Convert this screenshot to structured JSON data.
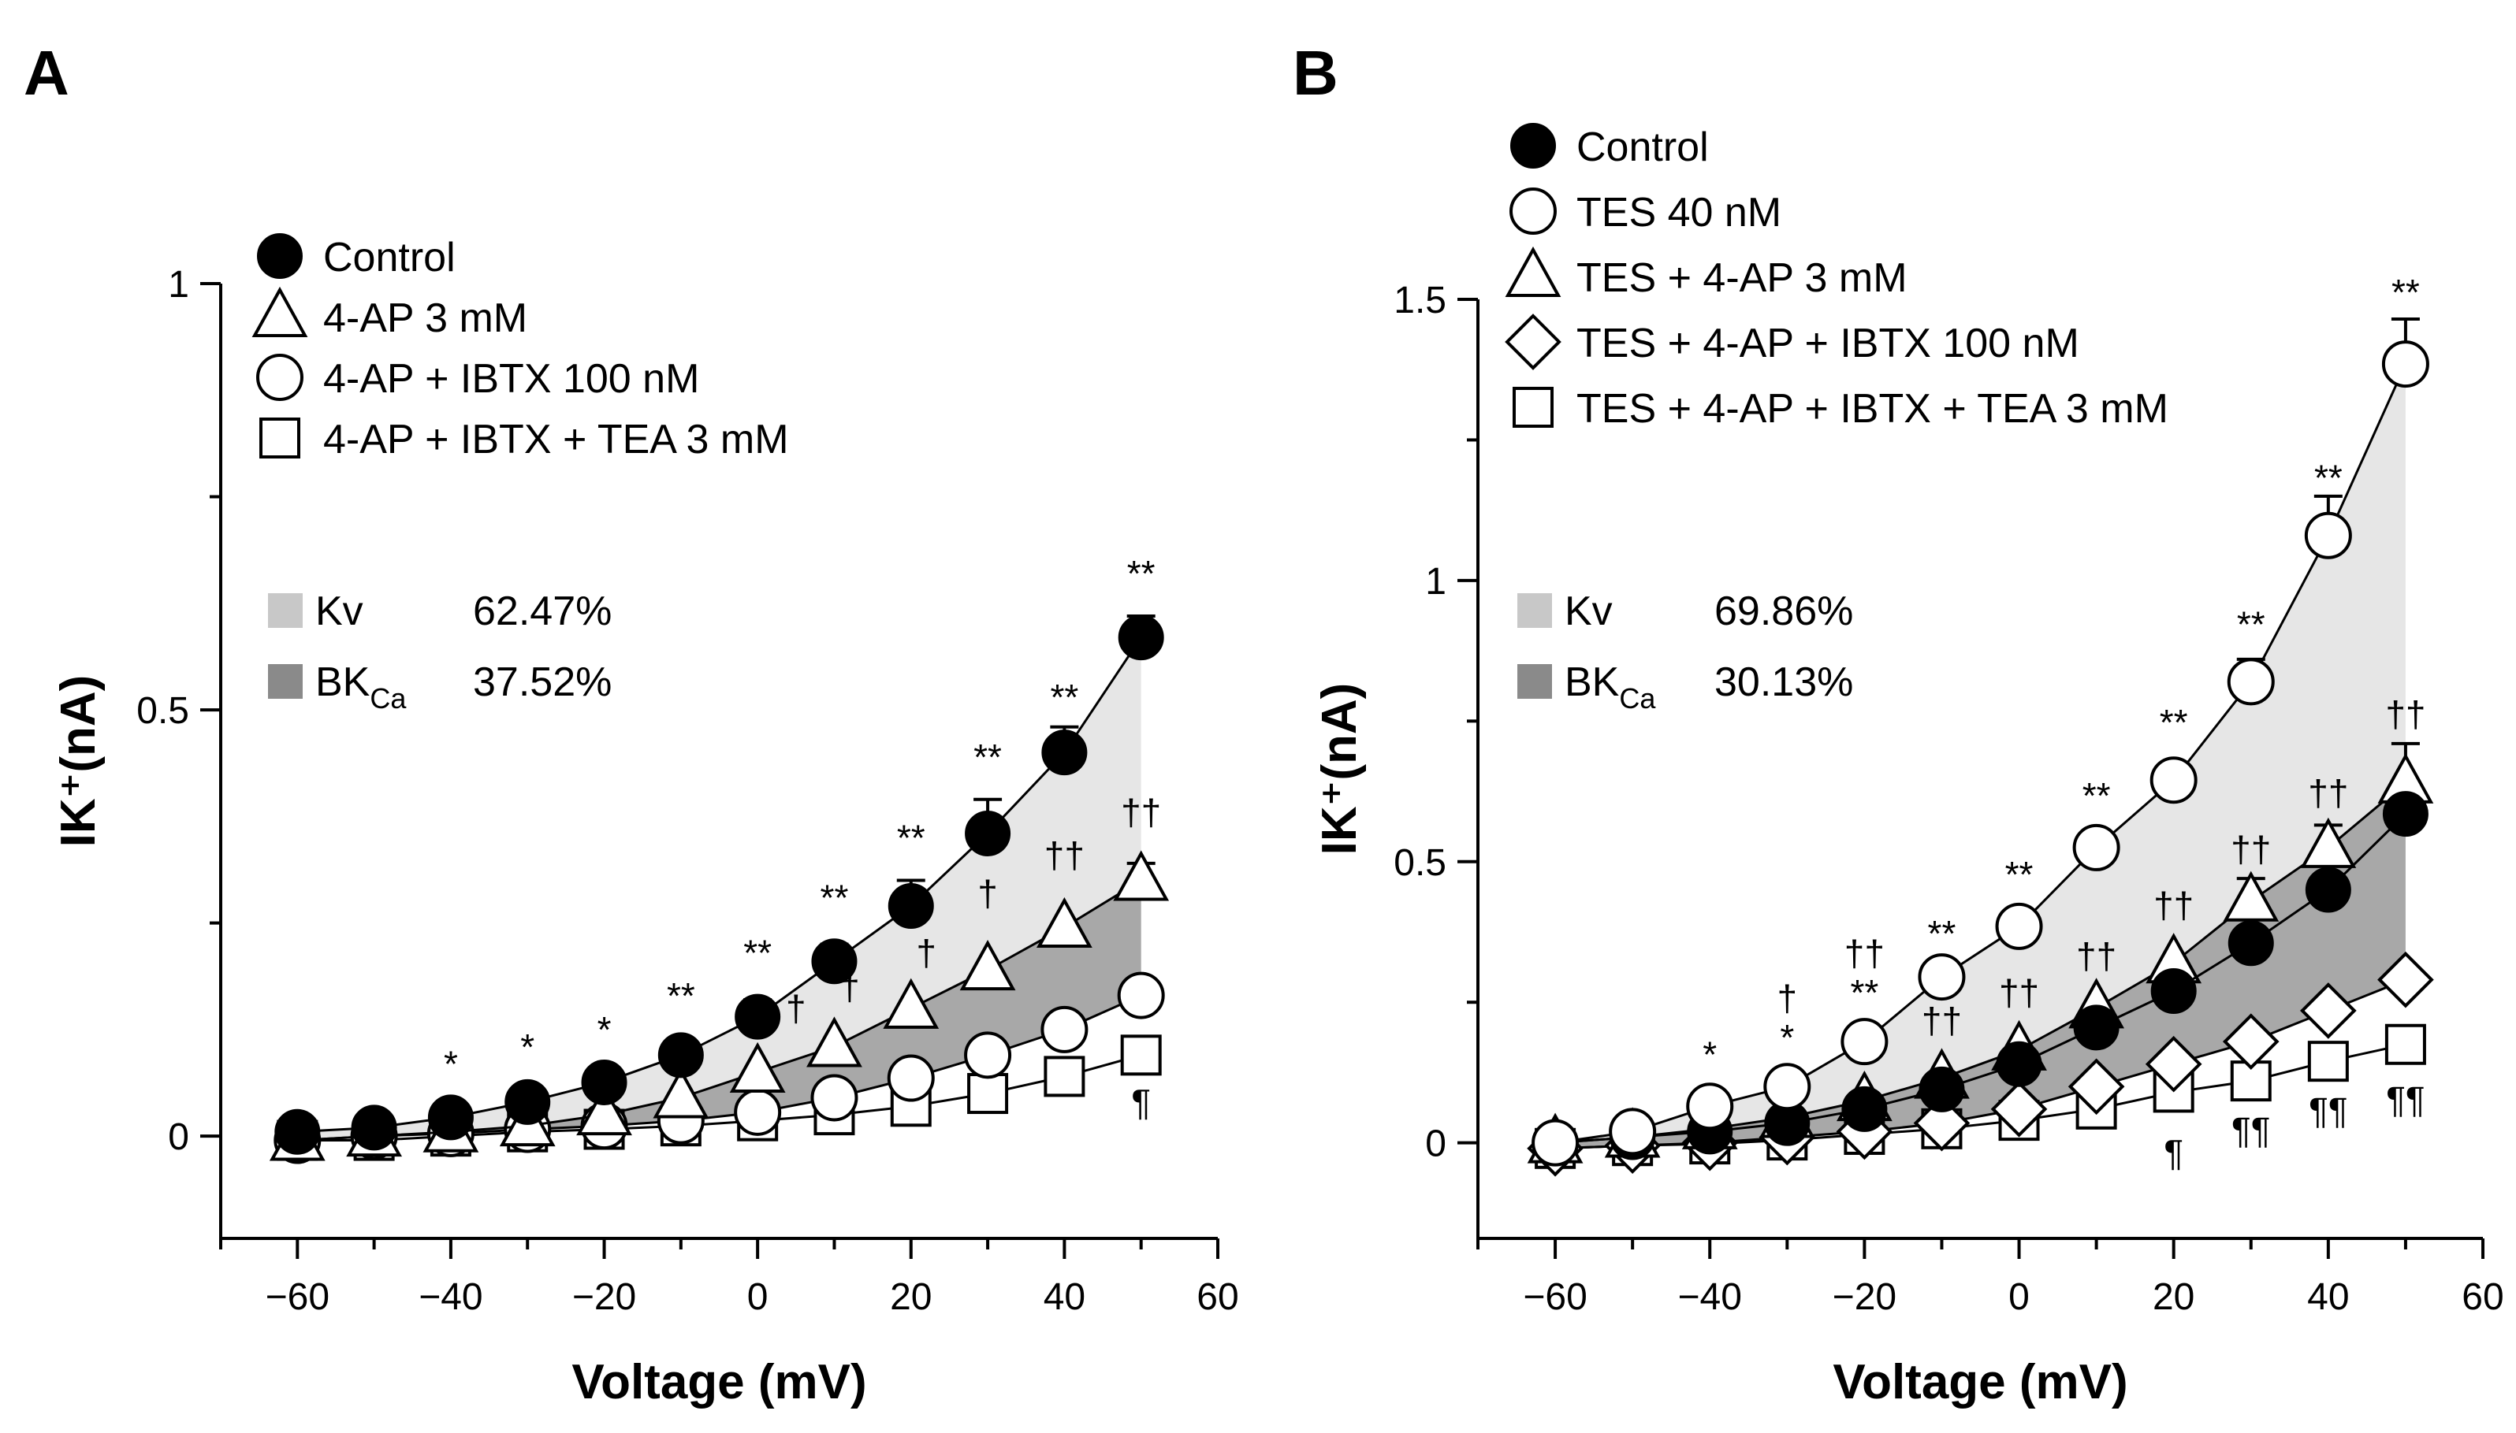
{
  "chart_data": [
    {
      "panel": "A",
      "type": "line",
      "xlabel": "Voltage (mV)",
      "ylabel": "IK⁺(nA)",
      "xlim": [
        -70,
        60
      ],
      "ylim": [
        -0.12,
        1.0
      ],
      "xticks": [
        -60,
        -40,
        -20,
        0,
        20,
        40,
        60
      ],
      "xtick_labels": [
        "−60",
        "−40",
        "−20",
        "0",
        "20",
        "40",
        "60"
      ],
      "yticks": [
        0,
        0.5,
        1
      ],
      "ytick_labels": [
        "0",
        "0.5",
        "1"
      ],
      "x": [
        -60,
        -50,
        -40,
        -30,
        -20,
        -10,
        0,
        10,
        20,
        30,
        40,
        50
      ],
      "series": [
        {
          "name": "4-AP + IBTX + TEA 3 mM",
          "marker": "square",
          "values": [
            -0.005,
            -0.005,
            0.0,
            0.005,
            0.008,
            0.012,
            0.018,
            0.025,
            0.035,
            0.05,
            0.07,
            0.095
          ],
          "err": [
            0,
            0,
            0,
            0,
            0,
            0,
            0,
            0,
            0,
            0,
            0,
            0.004
          ]
        },
        {
          "name": "4-AP + IBTX  100 nM",
          "marker": "circle-open",
          "values": [
            -0.005,
            0.0,
            0.003,
            0.008,
            0.012,
            0.018,
            0.028,
            0.045,
            0.068,
            0.095,
            0.125,
            0.165
          ],
          "err": [
            0,
            0,
            0,
            0,
            0,
            0,
            0,
            0,
            0,
            0,
            0,
            0
          ]
        },
        {
          "name": "4-AP 3 mM",
          "marker": "triangle",
          "values": [
            -0.005,
            0.0,
            0.005,
            0.012,
            0.025,
            0.045,
            0.075,
            0.105,
            0.15,
            0.195,
            0.245,
            0.3
          ],
          "err": [
            0,
            0,
            0,
            0,
            0,
            0,
            0,
            0,
            0,
            0,
            0,
            0.02
          ]
        },
        {
          "name": "Control",
          "marker": "circle-filled",
          "values": [
            0.005,
            0.01,
            0.022,
            0.04,
            0.063,
            0.095,
            0.14,
            0.205,
            0.27,
            0.355,
            0.45,
            0.585
          ],
          "err": [
            0,
            0,
            0.005,
            0.008,
            0.01,
            0.012,
            0.02,
            0.02,
            0.03,
            0.04,
            0.03,
            0.025
          ]
        }
      ],
      "shaded_regions": [
        {
          "name": "Kv",
          "between": [
            "Control",
            "4-AP 3 mM"
          ],
          "color": "#e6e6e6"
        },
        {
          "name": "BKCa",
          "between": [
            "4-AP 3 mM",
            "4-AP + IBTX  100 nM"
          ],
          "color": "#a8a8a8"
        }
      ],
      "legend": {
        "placement": "top-left",
        "entries": [
          "Control",
          "4-AP 3 mM",
          "4-AP + IBTX  100 nM",
          "4-AP + IBTX + TEA 3 mM"
        ]
      },
      "percent_legend": [
        {
          "label": "Kv",
          "sub": "",
          "value": "62.47%",
          "color": "#c8c8c8"
        },
        {
          "label": "BK",
          "sub": "Ca",
          "value": "37.52%",
          "color": "#8a8a8a"
        }
      ],
      "annotations": [
        {
          "x": -40,
          "y": 0.07,
          "text": "*"
        },
        {
          "x": -30,
          "y": 0.09,
          "text": "*"
        },
        {
          "x": -20,
          "y": 0.11,
          "text": "*"
        },
        {
          "x": -10,
          "y": 0.15,
          "text": "**"
        },
        {
          "x": 0,
          "y": 0.2,
          "text": "**"
        },
        {
          "x": 10,
          "y": 0.265,
          "text": "**"
        },
        {
          "x": 20,
          "y": 0.335,
          "text": "**"
        },
        {
          "x": 30,
          "y": 0.43,
          "text": "**"
        },
        {
          "x": 40,
          "y": 0.5,
          "text": "**"
        },
        {
          "x": 50,
          "y": 0.645,
          "text": "**"
        },
        {
          "x": 5,
          "y": 0.135,
          "text": "†"
        },
        {
          "x": 12,
          "y": 0.16,
          "text": "†"
        },
        {
          "x": 22,
          "y": 0.2,
          "text": "†"
        },
        {
          "x": 30,
          "y": 0.27,
          "text": "†"
        },
        {
          "x": 40,
          "y": 0.315,
          "text": "††"
        },
        {
          "x": 50,
          "y": 0.365,
          "text": "††"
        },
        {
          "x": 50,
          "y": 0.025,
          "text": "¶"
        }
      ]
    },
    {
      "panel": "B",
      "type": "line",
      "xlabel": "Voltage (mV)",
      "ylabel": "IK⁺(nA)",
      "xlim": [
        -70,
        60
      ],
      "ylim": [
        -0.17,
        1.5
      ],
      "xticks": [
        -60,
        -40,
        -20,
        0,
        20,
        40,
        60
      ],
      "xtick_labels": [
        "−60",
        "−40",
        "−20",
        "0",
        "20",
        "40",
        "60"
      ],
      "yticks": [
        0,
        0.5,
        1,
        1.5
      ],
      "ytick_labels": [
        "0",
        "0.5",
        "1",
        "1.5"
      ],
      "x": [
        -60,
        -50,
        -40,
        -30,
        -20,
        -10,
        0,
        10,
        20,
        30,
        40,
        50
      ],
      "series": [
        {
          "name": "TES + 4-AP + IBTX + TEA 3 mM",
          "marker": "square",
          "values": [
            -0.01,
            -0.005,
            -0.002,
            0.005,
            0.015,
            0.025,
            0.04,
            0.06,
            0.09,
            0.11,
            0.145,
            0.175
          ],
          "err": [
            0,
            0,
            0,
            0,
            0,
            0,
            0,
            0,
            0,
            0,
            0,
            0.01
          ]
        },
        {
          "name": "TES + 4-AP + IBTX  100 nM",
          "marker": "diamond",
          "values": [
            -0.01,
            -0.005,
            0.0,
            0.01,
            0.02,
            0.035,
            0.06,
            0.1,
            0.14,
            0.18,
            0.235,
            0.29
          ],
          "err": [
            0,
            0,
            0,
            0,
            0,
            0,
            0,
            0,
            0,
            0,
            0,
            0
          ]
        },
        {
          "name": "TES + 4-AP 3 mM",
          "marker": "triangle",
          "values": [
            0.0,
            0.01,
            0.025,
            0.045,
            0.075,
            0.115,
            0.165,
            0.24,
            0.32,
            0.43,
            0.525,
            0.64
          ],
          "err": [
            0,
            0,
            0,
            0,
            0,
            0,
            0,
            0,
            0,
            0.04,
            0.04,
            0.07
          ]
        },
        {
          "name": "Control",
          "marker": "circle-filled",
          "values": [
            0.0,
            0.01,
            0.02,
            0.035,
            0.06,
            0.095,
            0.14,
            0.205,
            0.27,
            0.355,
            0.45,
            0.585
          ],
          "err": [
            0,
            0,
            0,
            0,
            0,
            0,
            0,
            0,
            0,
            0,
            0,
            0
          ]
        },
        {
          "name": "TES 40 nM",
          "marker": "circle-open",
          "values": [
            0.0,
            0.02,
            0.065,
            0.1,
            0.18,
            0.295,
            0.385,
            0.525,
            0.645,
            0.82,
            1.08,
            1.385
          ],
          "err": [
            0,
            0,
            0,
            0,
            0,
            0,
            0,
            0,
            0,
            0.04,
            0.07,
            0.08
          ]
        }
      ],
      "shaded_regions": [
        {
          "name": "Kv",
          "between": [
            "TES 40 nM",
            "TES + 4-AP 3 mM"
          ],
          "color": "#e6e6e6"
        },
        {
          "name": "BKCa",
          "between": [
            "TES + 4-AP 3 mM",
            "TES + 4-AP + IBTX  100 nM"
          ],
          "color": "#a8a8a8"
        }
      ],
      "legend": {
        "placement": "top-left",
        "entries": [
          "Control",
          "TES 40 nM",
          "TES + 4-AP 3 mM",
          "TES + 4-AP + IBTX  100 nM",
          "TES + 4-AP + IBTX + TEA 3 mM"
        ]
      },
      "percent_legend": [
        {
          "label": "Kv",
          "sub": "",
          "value": "69.86%",
          "color": "#c8c8c8"
        },
        {
          "label": "BK",
          "sub": "Ca",
          "value": "30.13%",
          "color": "#8a8a8a"
        }
      ],
      "annotations": [
        {
          "x": -40,
          "y": 0.135,
          "text": "*"
        },
        {
          "x": -30,
          "y": 0.165,
          "text": "*"
        },
        {
          "x": -30,
          "y": 0.235,
          "text": "†"
        },
        {
          "x": -20,
          "y": 0.245,
          "text": "**"
        },
        {
          "x": -20,
          "y": 0.315,
          "text": "††"
        },
        {
          "x": -10,
          "y": 0.35,
          "text": "**"
        },
        {
          "x": -10,
          "y": 0.195,
          "text": "††"
        },
        {
          "x": 0,
          "y": 0.455,
          "text": "**"
        },
        {
          "x": 0,
          "y": 0.245,
          "text": "††"
        },
        {
          "x": 10,
          "y": 0.595,
          "text": "**"
        },
        {
          "x": 10,
          "y": 0.31,
          "text": "††"
        },
        {
          "x": 20,
          "y": 0.725,
          "text": "**"
        },
        {
          "x": 20,
          "y": 0.4,
          "text": "††"
        },
        {
          "x": 30,
          "y": 0.9,
          "text": "**"
        },
        {
          "x": 30,
          "y": 0.5,
          "text": "††"
        },
        {
          "x": 40,
          "y": 1.16,
          "text": "**"
        },
        {
          "x": 40,
          "y": 0.6,
          "text": "††"
        },
        {
          "x": 50,
          "y": 1.49,
          "text": "**"
        },
        {
          "x": 50,
          "y": 0.74,
          "text": "††"
        },
        {
          "x": 20,
          "y": -0.04,
          "text": "¶"
        },
        {
          "x": 30,
          "y": 0.0,
          "text": "¶¶"
        },
        {
          "x": 40,
          "y": 0.035,
          "text": "¶¶"
        },
        {
          "x": 50,
          "y": 0.055,
          "text": "¶¶"
        }
      ]
    }
  ]
}
